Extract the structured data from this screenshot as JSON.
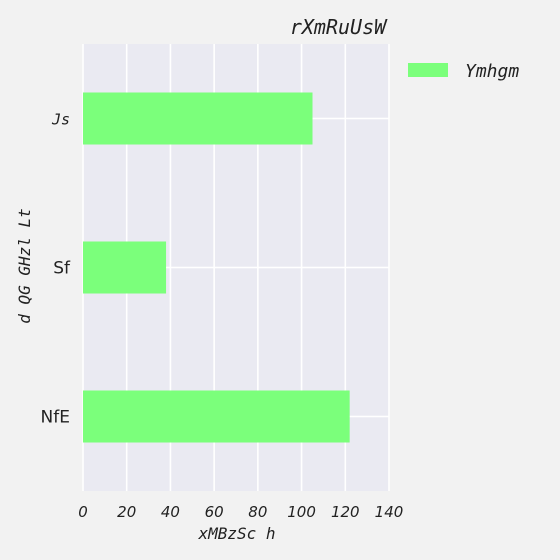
{
  "chart_data": {
    "type": "bar",
    "orientation": "horizontal",
    "title": "rXmRuUsW",
    "xlabel": "xMBzSc h",
    "ylabel": "d QG GHzl Lt",
    "categories": [
      "Js",
      "Sf",
      "NfE"
    ],
    "series": [
      {
        "name": "Ymhgm",
        "values": [
          105,
          38,
          122
        ],
        "color": "#7bff7b"
      }
    ],
    "xlim": [
      0,
      140
    ],
    "xticks": [
      0,
      20,
      40,
      60,
      80,
      100,
      120,
      140
    ],
    "grid": true,
    "legend": "outside-top-right",
    "plot_background": "#eaeaf2"
  }
}
